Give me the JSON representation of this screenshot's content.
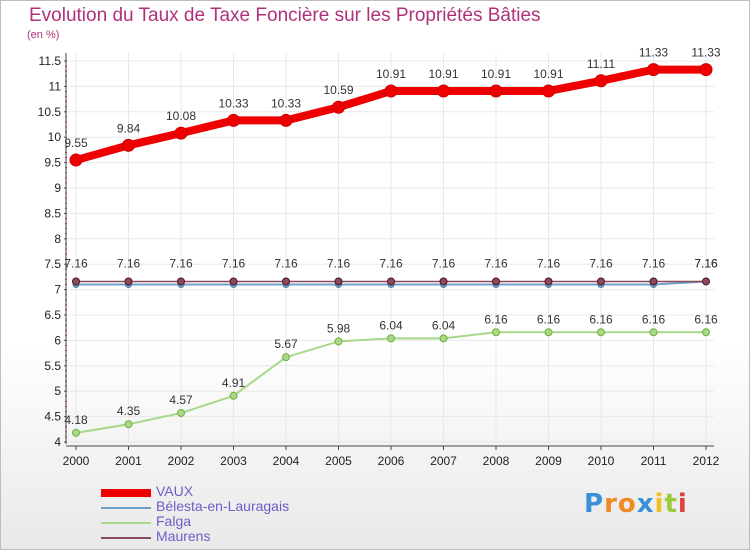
{
  "title": "Evolution du Taux de Taxe Foncière sur les Propriétés Bâties",
  "subtitle": "(en %)",
  "brand": {
    "letters": [
      "P",
      "r",
      "o",
      "x",
      "i",
      "t",
      "i"
    ],
    "colors": [
      "#3b8fd8",
      "#f08a24",
      "#f08a24",
      "#3b8fd8",
      "#f0c020",
      "#9acb3c",
      "#e04040"
    ]
  },
  "chart_data": {
    "type": "line",
    "title": "Evolution du Taux de Taxe Foncière sur les Propriétés Bâties",
    "ylabel": "(en %)",
    "xlabel": "",
    "x": [
      "2000",
      "2001",
      "2002",
      "2003",
      "2004",
      "2005",
      "2006",
      "2007",
      "2008",
      "2009",
      "2010",
      "2011",
      "2012"
    ],
    "ylim": [
      4,
      11.5
    ],
    "yticks": [
      "4",
      "4.5",
      "5",
      "5.5",
      "6",
      "6.5",
      "7",
      "7.5",
      "8",
      "8.5",
      "9",
      "9.5",
      "10",
      "10.5",
      "11",
      "11.5"
    ],
    "grid": true,
    "legend": "bottom-left",
    "series": [
      {
        "name": "VAUX",
        "color": "#ee0000",
        "values": [
          9.55,
          9.84,
          10.08,
          10.33,
          10.33,
          10.59,
          10.91,
          10.91,
          10.91,
          10.91,
          11.11,
          11.33,
          11.33
        ],
        "labels": [
          "9.55",
          "9.84",
          "10.08",
          "10.33",
          "10.33",
          "10.59",
          "10.91",
          "10.91",
          "10.91",
          "10.91",
          "11.11",
          "11.33",
          "11.33"
        ]
      },
      {
        "name": "Bélesta-en-Lauragais",
        "color": "#6fa0c8",
        "values": [
          7.1,
          7.1,
          7.1,
          7.1,
          7.1,
          7.1,
          7.1,
          7.1,
          7.1,
          7.1,
          7.1,
          7.1,
          7.16
        ],
        "labels": [
          "",
          "",
          "",
          "",
          "",
          "",
          "",
          "",
          "",
          "",
          "",
          "",
          "7.16"
        ]
      },
      {
        "name": "Falga",
        "color": "#a8d888",
        "values": [
          4.18,
          4.35,
          4.57,
          4.91,
          5.67,
          5.98,
          6.04,
          6.04,
          6.16,
          6.16,
          6.16,
          6.16,
          6.16
        ],
        "labels": [
          "4.18",
          "4.35",
          "4.57",
          "4.91",
          "5.67",
          "5.98",
          "6.04",
          "6.04",
          "6.16",
          "6.16",
          "6.16",
          "6.16",
          "6.16"
        ]
      },
      {
        "name": "Maurens",
        "color": "#8a4a5a",
        "values": [
          7.16,
          7.16,
          7.16,
          7.16,
          7.16,
          7.16,
          7.16,
          7.16,
          7.16,
          7.16,
          7.16,
          7.16,
          7.16
        ],
        "labels": [
          "7.16",
          "7.16",
          "7.16",
          "7.16",
          "7.16",
          "7.16",
          "7.16",
          "7.16",
          "7.16",
          "7.16",
          "7.16",
          "7.16",
          "7.16"
        ]
      }
    ]
  }
}
